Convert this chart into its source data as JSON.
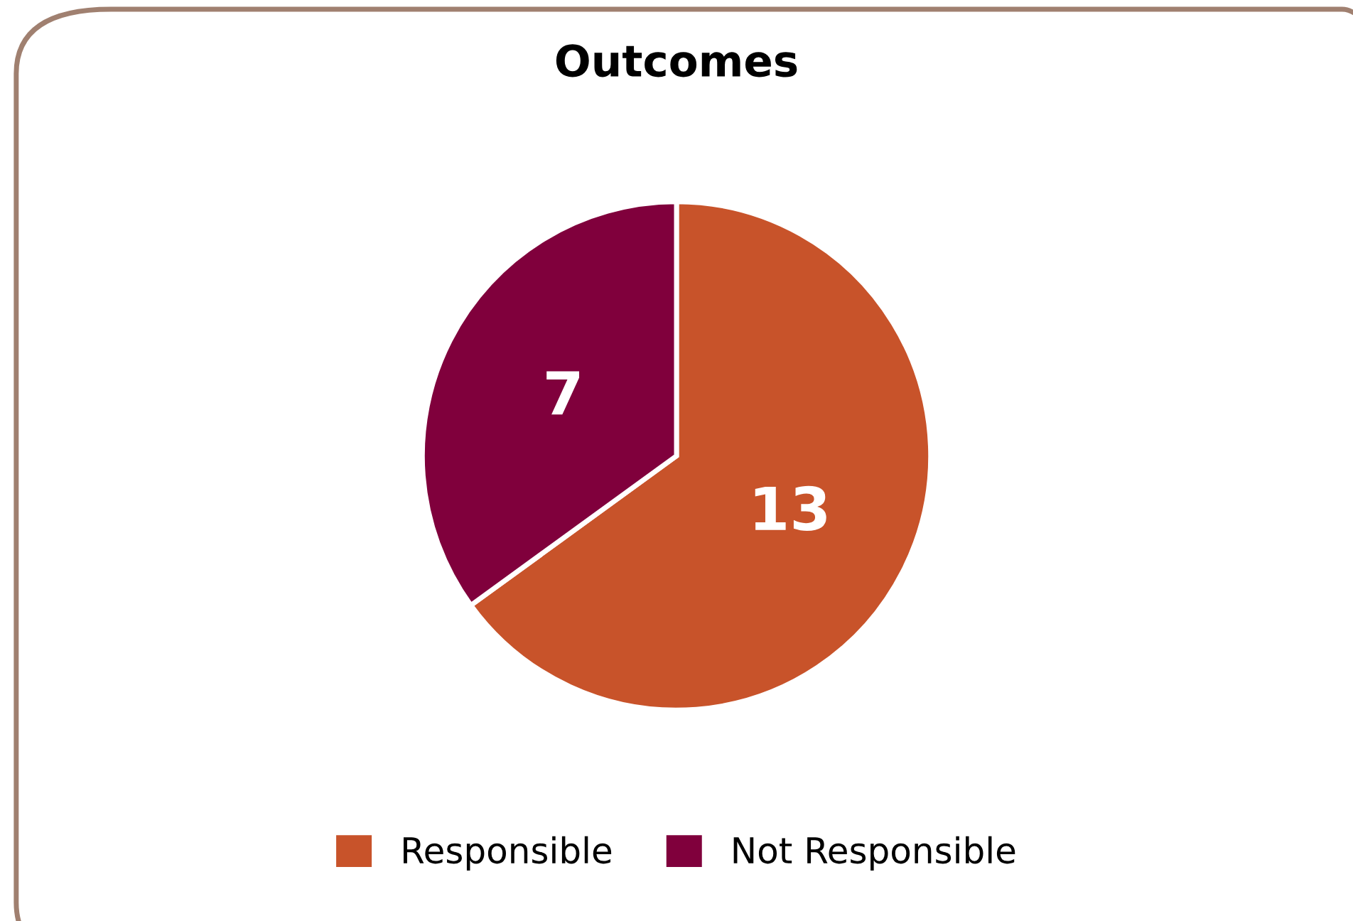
{
  "chart_data": {
    "type": "pie",
    "title": "Outcomes",
    "categories": [
      "Responsible",
      "Not Responsible"
    ],
    "values": [
      13,
      7
    ],
    "colors": [
      "#c8532a",
      "#80003c"
    ],
    "data_labels": true,
    "legend": "bottom"
  }
}
